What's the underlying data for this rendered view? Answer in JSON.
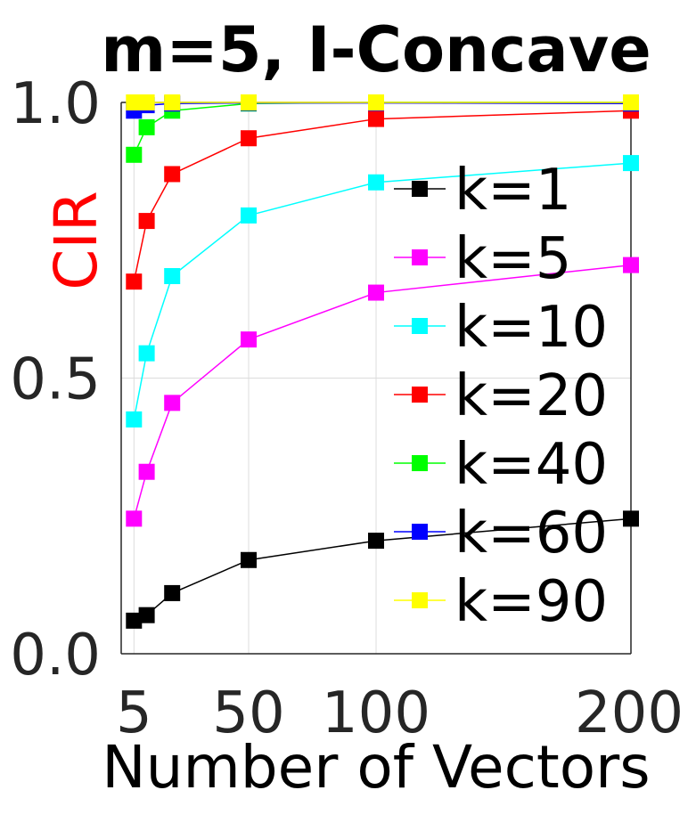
{
  "chart_data": {
    "type": "line",
    "title": "m=5, I-Concave",
    "xlabel": "Number of Vectors",
    "ylabel": "CIR",
    "ylabel_color": "#ff0000",
    "x_ticks": [
      5,
      50,
      100,
      200
    ],
    "x_tick_labels": [
      "5",
      "50",
      "100",
      "200"
    ],
    "y_ticks": [
      0.0,
      0.5,
      1.0
    ],
    "y_tick_labels": [
      "0.0",
      "0.5",
      "1.0"
    ],
    "xlim": [
      0,
      200
    ],
    "ylim": [
      0,
      1
    ],
    "grid": true,
    "legend_position": "right",
    "x": [
      5,
      10,
      20,
      50,
      100,
      200
    ],
    "series": [
      {
        "name": "k=1",
        "color": "#000000",
        "values": [
          0.06,
          0.07,
          0.11,
          0.17,
          0.205,
          0.245
        ]
      },
      {
        "name": "k=5",
        "color": "#ff00ff",
        "values": [
          0.245,
          0.33,
          0.455,
          0.57,
          0.655,
          0.705
        ]
      },
      {
        "name": "k=10",
        "color": "#00ffff",
        "values": [
          0.425,
          0.545,
          0.685,
          0.795,
          0.855,
          0.89
        ]
      },
      {
        "name": "k=20",
        "color": "#ff0000",
        "values": [
          0.675,
          0.785,
          0.87,
          0.935,
          0.97,
          0.985
        ]
      },
      {
        "name": "k=40",
        "color": "#00ff00",
        "values": [
          0.905,
          0.955,
          0.985,
          0.998,
          1.0,
          1.0
        ]
      },
      {
        "name": "k=60",
        "color": "#0000ff",
        "values": [
          0.985,
          0.995,
          0.998,
          0.999,
          0.999,
          0.998
        ]
      },
      {
        "name": "k=90",
        "color": "#ffff00",
        "values": [
          1.0,
          1.0,
          1.0,
          1.0,
          1.0,
          1.0
        ]
      }
    ]
  }
}
